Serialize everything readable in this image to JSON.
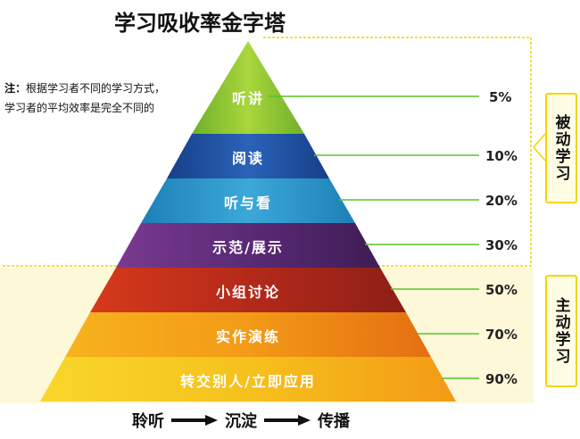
{
  "title": "学习吸收率金字塔",
  "note": {
    "label": "注：",
    "line1": "根据学习者不同的学习方式，",
    "line2": "学习者的平均效率是完全不同的"
  },
  "bands": [
    {
      "label": "听讲",
      "percent": "5%",
      "color": "#8cc232"
    },
    {
      "label": "阅读",
      "percent": "10%",
      "color": "#1e50a0"
    },
    {
      "label": "听与看",
      "percent": "20%",
      "color": "#2b95c8"
    },
    {
      "label": "示范/展示",
      "percent": "30%",
      "color": "#6b2f7e"
    },
    {
      "label": "小组讨论",
      "percent": "50%",
      "color": "#c52f1c"
    },
    {
      "label": "实作演练",
      "percent": "70%",
      "color": "#f39a16"
    },
    {
      "label": "转交别人/立即应用",
      "percent": "90%",
      "color": "#f6c91a"
    }
  ],
  "groups": {
    "passive": "被动学习",
    "active": "主动学习"
  },
  "flow": {
    "step1": "聆听",
    "step2": "沉淀",
    "step3": "传播"
  },
  "colors": {
    "leader_line": "#5cc02a",
    "dashed_border": "#f0d200",
    "active_bg": "#fdf8d8"
  }
}
